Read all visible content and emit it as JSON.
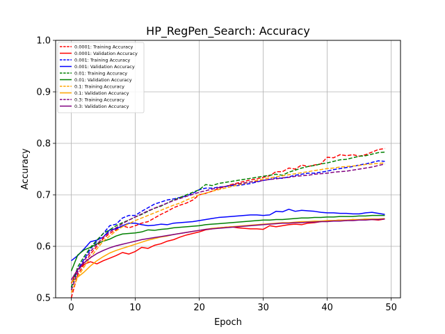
{
  "chart_data": {
    "type": "line",
    "title": "HP_RegPen_Search: Accuracy",
    "xlabel": "Epoch",
    "ylabel": "Accuracy",
    "xlim": [
      -2.45,
      51.45
    ],
    "ylim": [
      0.5,
      1.0
    ],
    "xticks": [
      0,
      10,
      20,
      30,
      40,
      50
    ],
    "yticks": [
      0.5,
      0.6,
      0.7,
      0.8,
      0.9,
      1.0
    ],
    "grid": true,
    "legend_position": "top-left",
    "x": [
      0,
      1,
      2,
      3,
      4,
      5,
      6,
      7,
      8,
      9,
      10,
      11,
      12,
      13,
      14,
      15,
      16,
      17,
      18,
      19,
      20,
      21,
      22,
      23,
      24,
      25,
      26,
      27,
      28,
      29,
      30,
      31,
      32,
      33,
      34,
      35,
      36,
      37,
      38,
      39,
      40,
      41,
      42,
      43,
      44,
      45,
      46,
      47,
      48,
      49
    ],
    "series": [
      {
        "name": "0.0001: Training Accuracy",
        "color": "#ff0000",
        "dash": true,
        "values": [
          0.5,
          0.545,
          0.565,
          0.585,
          0.6,
          0.615,
          0.625,
          0.632,
          0.64,
          0.636,
          0.64,
          0.645,
          0.648,
          0.655,
          0.662,
          0.668,
          0.675,
          0.68,
          0.684,
          0.69,
          0.7,
          0.703,
          0.707,
          0.712,
          0.716,
          0.72,
          0.723,
          0.726,
          0.729,
          0.731,
          0.734,
          0.737,
          0.745,
          0.745,
          0.752,
          0.75,
          0.758,
          0.755,
          0.758,
          0.76,
          0.773,
          0.772,
          0.778,
          0.776,
          0.778,
          0.775,
          0.778,
          0.783,
          0.788,
          0.79
        ]
      },
      {
        "name": "0.0001: Validation Accuracy",
        "color": "#ff0000",
        "dash": false,
        "values": [
          0.528,
          0.555,
          0.565,
          0.57,
          0.566,
          0.572,
          0.577,
          0.582,
          0.588,
          0.585,
          0.59,
          0.598,
          0.596,
          0.602,
          0.605,
          0.61,
          0.613,
          0.618,
          0.622,
          0.625,
          0.628,
          0.632,
          0.634,
          0.636,
          0.637,
          0.638,
          0.636,
          0.635,
          0.634,
          0.634,
          0.633,
          0.64,
          0.638,
          0.64,
          0.642,
          0.643,
          0.642,
          0.645,
          0.646,
          0.648,
          0.65,
          0.65,
          0.651,
          0.65,
          0.652,
          0.651,
          0.653,
          0.652,
          0.651,
          0.653
        ]
      },
      {
        "name": "0.001: Training Accuracy",
        "color": "#0000ff",
        "dash": true,
        "values": [
          0.52,
          0.555,
          0.575,
          0.595,
          0.61,
          0.625,
          0.64,
          0.643,
          0.655,
          0.66,
          0.66,
          0.668,
          0.675,
          0.682,
          0.686,
          0.69,
          0.692,
          0.695,
          0.698,
          0.703,
          0.71,
          0.713,
          0.713,
          0.715,
          0.716,
          0.718,
          0.718,
          0.72,
          0.722,
          0.725,
          0.728,
          0.73,
          0.733,
          0.732,
          0.735,
          0.738,
          0.74,
          0.742,
          0.742,
          0.744,
          0.746,
          0.749,
          0.751,
          0.753,
          0.755,
          0.758,
          0.76,
          0.763,
          0.766,
          0.765
        ]
      },
      {
        "name": "0.001: Validation Accuracy",
        "color": "#0000ff",
        "dash": false,
        "values": [
          0.572,
          0.582,
          0.595,
          0.609,
          0.612,
          0.618,
          0.632,
          0.634,
          0.64,
          0.645,
          0.645,
          0.642,
          0.64,
          0.641,
          0.643,
          0.642,
          0.645,
          0.646,
          0.647,
          0.648,
          0.65,
          0.652,
          0.654,
          0.656,
          0.657,
          0.658,
          0.659,
          0.66,
          0.661,
          0.661,
          0.66,
          0.661,
          0.668,
          0.667,
          0.672,
          0.668,
          0.67,
          0.669,
          0.668,
          0.666,
          0.665,
          0.665,
          0.664,
          0.664,
          0.663,
          0.663,
          0.665,
          0.666,
          0.664,
          0.662
        ]
      },
      {
        "name": "0.01: Training Accuracy",
        "color": "#008000",
        "dash": true,
        "values": [
          0.52,
          0.56,
          0.58,
          0.598,
          0.612,
          0.625,
          0.632,
          0.64,
          0.646,
          0.651,
          0.657,
          0.662,
          0.668,
          0.674,
          0.678,
          0.684,
          0.69,
          0.695,
          0.7,
          0.705,
          0.71,
          0.72,
          0.718,
          0.722,
          0.724,
          0.726,
          0.728,
          0.73,
          0.732,
          0.734,
          0.736,
          0.738,
          0.74,
          0.738,
          0.744,
          0.748,
          0.752,
          0.755,
          0.757,
          0.76,
          0.762,
          0.765,
          0.768,
          0.769,
          0.772,
          0.775,
          0.776,
          0.779,
          0.782,
          0.783
        ]
      },
      {
        "name": "0.01: Validation Accuracy",
        "color": "#008000",
        "dash": false,
        "values": [
          0.552,
          0.583,
          0.593,
          0.598,
          0.605,
          0.61,
          0.614,
          0.62,
          0.624,
          0.625,
          0.626,
          0.628,
          0.632,
          0.631,
          0.633,
          0.634,
          0.636,
          0.637,
          0.638,
          0.639,
          0.64,
          0.642,
          0.643,
          0.644,
          0.645,
          0.646,
          0.647,
          0.648,
          0.649,
          0.65,
          0.651,
          0.651,
          0.652,
          0.652,
          0.653,
          0.654,
          0.655,
          0.655,
          0.656,
          0.656,
          0.657,
          0.657,
          0.658,
          0.658,
          0.658,
          0.659,
          0.659,
          0.66,
          0.66,
          0.66
        ]
      },
      {
        "name": "0.1: Training Accuracy",
        "color": "#ffa500",
        "dash": true,
        "values": [
          0.51,
          0.54,
          0.56,
          0.578,
          0.595,
          0.61,
          0.62,
          0.63,
          0.638,
          0.644,
          0.65,
          0.655,
          0.66,
          0.665,
          0.67,
          0.675,
          0.68,
          0.684,
          0.69,
          0.695,
          0.7,
          0.703,
          0.707,
          0.71,
          0.713,
          0.716,
          0.719,
          0.722,
          0.725,
          0.728,
          0.731,
          0.733,
          0.735,
          0.737,
          0.739,
          0.741,
          0.743,
          0.745,
          0.747,
          0.749,
          0.751,
          0.752,
          0.754,
          0.755,
          0.756,
          0.757,
          0.759,
          0.76,
          0.761,
          0.762
        ]
      },
      {
        "name": "0.1: Validation Accuracy",
        "color": "#ffa500",
        "dash": false,
        "values": [
          0.53,
          0.54,
          0.55,
          0.562,
          0.572,
          0.58,
          0.587,
          0.592,
          0.596,
          0.6,
          0.604,
          0.608,
          0.612,
          0.615,
          0.618,
          0.62,
          0.623,
          0.625,
          0.627,
          0.629,
          0.631,
          0.633,
          0.635,
          0.636,
          0.637,
          0.638,
          0.639,
          0.64,
          0.641,
          0.642,
          0.643,
          0.644,
          0.645,
          0.646,
          0.646,
          0.647,
          0.648,
          0.648,
          0.649,
          0.649,
          0.65,
          0.65,
          0.651,
          0.651,
          0.652,
          0.652,
          0.653,
          0.653,
          0.653,
          0.654
        ]
      },
      {
        "name": "0.3: Training Accuracy",
        "color": "#800080",
        "dash": true,
        "values": [
          0.515,
          0.55,
          0.572,
          0.59,
          0.604,
          0.618,
          0.628,
          0.636,
          0.644,
          0.651,
          0.657,
          0.663,
          0.669,
          0.674,
          0.679,
          0.684,
          0.689,
          0.693,
          0.697,
          0.701,
          0.705,
          0.708,
          0.711,
          0.714,
          0.716,
          0.719,
          0.721,
          0.723,
          0.725,
          0.726,
          0.728,
          0.73,
          0.731,
          0.733,
          0.734,
          0.736,
          0.737,
          0.738,
          0.74,
          0.741,
          0.742,
          0.744,
          0.745,
          0.746,
          0.748,
          0.75,
          0.752,
          0.754,
          0.757,
          0.76
        ]
      },
      {
        "name": "0.3: Validation Accuracy",
        "color": "#800080",
        "dash": false,
        "values": [
          0.535,
          0.555,
          0.568,
          0.578,
          0.586,
          0.592,
          0.597,
          0.601,
          0.604,
          0.607,
          0.61,
          0.613,
          0.615,
          0.617,
          0.619,
          0.621,
          0.623,
          0.625,
          0.627,
          0.629,
          0.631,
          0.633,
          0.634,
          0.635,
          0.636,
          0.637,
          0.638,
          0.639,
          0.64,
          0.641,
          0.642,
          0.643,
          0.644,
          0.645,
          0.645,
          0.646,
          0.646,
          0.647,
          0.647,
          0.648,
          0.648,
          0.649,
          0.649,
          0.65,
          0.65,
          0.651,
          0.651,
          0.652,
          0.652,
          0.653
        ]
      }
    ]
  }
}
